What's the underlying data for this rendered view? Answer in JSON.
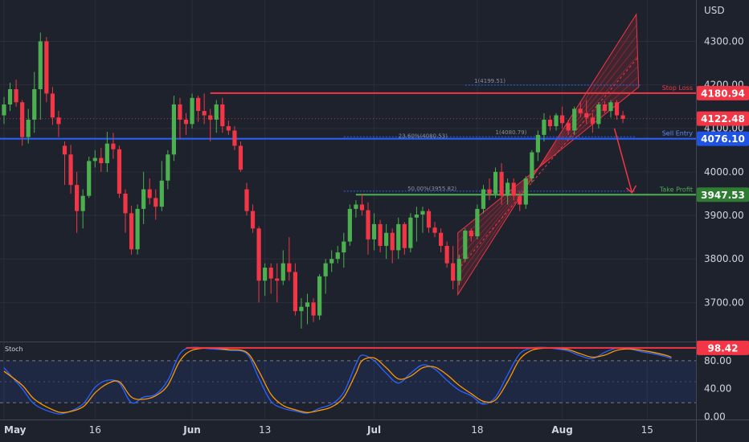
{
  "chart_data": {
    "type": "candlestick",
    "price_axis": {
      "unit": "USD",
      "ticks": [
        3700,
        3800,
        3900,
        4000,
        4100,
        4200,
        4300
      ],
      "tick_labels": [
        "3700.00",
        "3800.00",
        "3900.00",
        "4000.00",
        "4100.00",
        "4200.00",
        "4300.00"
      ],
      "range": [
        3612,
        4395
      ]
    },
    "time_axis": {
      "labels": [
        {
          "label": "May",
          "day": 0,
          "bold": true
        },
        {
          "label": "16",
          "day": 15,
          "bold": false
        },
        {
          "label": "Jun",
          "day": 31,
          "bold": true
        },
        {
          "label": "13",
          "day": 43,
          "bold": false
        },
        {
          "label": "Jul",
          "day": 61,
          "bold": true
        },
        {
          "label": "18",
          "day": 78,
          "bold": false
        },
        {
          "label": "Aug",
          "day": 92,
          "bold": true
        },
        {
          "label": "15",
          "day": 106,
          "bold": false
        }
      ]
    },
    "price_tags": [
      {
        "value": "4180.94",
        "color": "#f23645"
      },
      {
        "value": "4122.48",
        "color": "#f23645"
      },
      {
        "value": "4076.10",
        "color": "#1e53e5"
      },
      {
        "value": "3947.53",
        "color": "#2e7d32"
      }
    ],
    "levels": [
      {
        "label": "Stop Loss",
        "value": 4180.94,
        "color": "#f23645"
      },
      {
        "label": "Sell Entry",
        "value": 4076.1,
        "color": "#2962ff"
      },
      {
        "label": "Take Profit",
        "value": 3947.53,
        "color": "#4caf50"
      }
    ],
    "fib_labels": [
      {
        "label": "1(4199.51)",
        "value": 4199.51
      },
      {
        "label": "1(4080.79)",
        "value": 4080.79
      },
      {
        "label": "23.60%(4080.53)",
        "value": 4080.53
      },
      {
        "label": "50.00%(3955.82)",
        "value": 3955.82
      }
    ],
    "candles": [
      [
        0,
        4130,
        4172,
        4110,
        4155
      ],
      [
        1,
        4155,
        4205,
        4140,
        4190
      ],
      [
        2,
        4190,
        4212,
        4150,
        4160
      ],
      [
        3,
        4160,
        4165,
        4060,
        4080
      ],
      [
        4,
        4080,
        4145,
        4065,
        4120
      ],
      [
        5,
        4120,
        4230,
        4090,
        4190
      ],
      [
        6,
        4190,
        4320,
        4120,
        4300
      ],
      [
        7,
        4300,
        4310,
        4160,
        4180
      ],
      [
        8,
        4180,
        4195,
        4108,
        4125
      ],
      [
        9,
        4125,
        4140,
        4080,
        4110
      ],
      [
        10,
        4060,
        4070,
        3970,
        4040
      ],
      [
        11,
        4040,
        4062,
        3950,
        3970
      ],
      [
        12,
        3970,
        4000,
        3860,
        3910
      ],
      [
        13,
        3910,
        3960,
        3870,
        3945
      ],
      [
        14,
        3945,
        4035,
        3940,
        4025
      ],
      [
        15,
        4025,
        4050,
        4010,
        4032
      ],
      [
        16,
        4032,
        4055,
        4000,
        4020
      ],
      [
        17,
        4020,
        4092,
        4000,
        4065
      ],
      [
        18,
        4065,
        4090,
        4030,
        4052
      ],
      [
        19,
        4052,
        4060,
        3940,
        3950
      ],
      [
        20,
        3950,
        3960,
        3860,
        3905
      ],
      [
        21,
        3905,
        3922,
        3810,
        3822
      ],
      [
        22,
        3822,
        3925,
        3810,
        3915
      ],
      [
        23,
        3915,
        4000,
        3880,
        3960
      ],
      [
        24,
        3960,
        3985,
        3925,
        3940
      ],
      [
        25,
        3940,
        3960,
        3890,
        3920
      ],
      [
        26,
        3920,
        4025,
        3910,
        3980
      ],
      [
        27,
        3980,
        4050,
        3960,
        4040
      ],
      [
        28,
        4040,
        4175,
        4025,
        4155
      ],
      [
        29,
        4155,
        4170,
        4075,
        4120
      ],
      [
        30,
        4120,
        4135,
        4085,
        4110
      ],
      [
        31,
        4110,
        4180,
        4100,
        4170
      ],
      [
        32,
        4170,
        4175,
        4115,
        4140
      ],
      [
        33,
        4140,
        4180,
        4110,
        4130
      ],
      [
        34,
        4130,
        4145,
        4070,
        4120
      ],
      [
        35,
        4120,
        4165,
        4090,
        4155
      ],
      [
        36,
        4155,
        4170,
        4090,
        4105
      ],
      [
        37,
        4105,
        4118,
        4085,
        4095
      ],
      [
        38,
        4095,
        4105,
        4050,
        4060
      ],
      [
        39,
        4060,
        4070,
        4000,
        4005
      ],
      [
        40,
        3960,
        3975,
        3900,
        3910
      ],
      [
        41,
        3910,
        3925,
        3860,
        3870
      ],
      [
        42,
        3870,
        3875,
        3700,
        3750
      ],
      [
        43,
        3750,
        3790,
        3715,
        3780
      ],
      [
        44,
        3780,
        3790,
        3720,
        3755
      ],
      [
        45,
        3755,
        3790,
        3700,
        3750
      ],
      [
        46,
        3750,
        3820,
        3740,
        3790
      ],
      [
        47,
        3790,
        3850,
        3750,
        3770
      ],
      [
        48,
        3770,
        3790,
        3670,
        3680
      ],
      [
        49,
        3680,
        3710,
        3640,
        3690
      ],
      [
        50,
        3690,
        3720,
        3650,
        3700
      ],
      [
        51,
        3700,
        3710,
        3655,
        3670
      ],
      [
        52,
        3670,
        3765,
        3660,
        3760
      ],
      [
        53,
        3760,
        3800,
        3720,
        3790
      ],
      [
        54,
        3790,
        3820,
        3770,
        3800
      ],
      [
        55,
        3800,
        3830,
        3790,
        3815
      ],
      [
        56,
        3815,
        3860,
        3780,
        3840
      ],
      [
        57,
        3840,
        3925,
        3830,
        3915
      ],
      [
        58,
        3915,
        3935,
        3895,
        3925
      ],
      [
        59,
        3925,
        3950,
        3900,
        3912
      ],
      [
        60,
        3912,
        3930,
        3810,
        3845
      ],
      [
        61,
        3845,
        3905,
        3820,
        3880
      ],
      [
        62,
        3880,
        3890,
        3815,
        3830
      ],
      [
        63,
        3830,
        3880,
        3800,
        3860
      ],
      [
        64,
        3860,
        3870,
        3790,
        3820
      ],
      [
        65,
        3820,
        3895,
        3800,
        3880
      ],
      [
        66,
        3880,
        3885,
        3810,
        3825
      ],
      [
        67,
        3825,
        3905,
        3815,
        3895
      ],
      [
        68,
        3895,
        3920,
        3840,
        3902
      ],
      [
        69,
        3902,
        3920,
        3860,
        3910
      ],
      [
        70,
        3910,
        3915,
        3860,
        3872
      ],
      [
        71,
        3872,
        3885,
        3850,
        3860
      ],
      [
        72,
        3860,
        3870,
        3815,
        3830
      ],
      [
        73,
        3830,
        3840,
        3780,
        3790
      ],
      [
        74,
        3790,
        3830,
        3730,
        3750
      ],
      [
        75,
        3750,
        3810,
        3740,
        3800
      ],
      [
        76,
        3800,
        3870,
        3795,
        3865
      ],
      [
        77,
        3865,
        3870,
        3840,
        3852
      ],
      [
        78,
        3852,
        3925,
        3845,
        3915
      ],
      [
        79,
        3915,
        3970,
        3905,
        3960
      ],
      [
        80,
        3960,
        3985,
        3935,
        3950
      ],
      [
        81,
        3950,
        4010,
        3940,
        4000
      ],
      [
        82,
        4000,
        4020,
        3925,
        3945
      ],
      [
        83,
        3945,
        3985,
        3925,
        3975
      ],
      [
        84,
        3975,
        3985,
        3935,
        3945
      ],
      [
        85,
        3945,
        3955,
        3910,
        3925
      ],
      [
        86,
        3925,
        3990,
        3915,
        3985
      ],
      [
        87,
        3985,
        4050,
        3975,
        4045
      ],
      [
        88,
        4045,
        4095,
        4025,
        4085
      ],
      [
        89,
        4085,
        4135,
        4070,
        4120
      ],
      [
        90,
        4120,
        4130,
        4095,
        4105
      ],
      [
        91,
        4105,
        4135,
        4095,
        4130
      ],
      [
        92,
        4130,
        4150,
        4100,
        4112
      ],
      [
        93,
        4112,
        4120,
        4085,
        4095
      ],
      [
        94,
        4095,
        4150,
        4085,
        4145
      ],
      [
        95,
        4145,
        4160,
        4125,
        4135
      ],
      [
        96,
        4135,
        4165,
        4110,
        4125
      ],
      [
        97,
        4125,
        4135,
        4090,
        4110
      ],
      [
        98,
        4110,
        4160,
        4100,
        4155
      ],
      [
        99,
        4155,
        4162,
        4135,
        4140
      ],
      [
        100,
        4140,
        4165,
        4125,
        4160
      ],
      [
        101,
        4160,
        4165,
        4120,
        4130
      ],
      [
        102,
        4130,
        4140,
        4112,
        4122
      ]
    ],
    "stochastic": {
      "title": "Stoch",
      "ticks": [
        0,
        40,
        80
      ],
      "tick_labels": [
        "0.00",
        "40.00",
        "80.00"
      ],
      "current_value": "98.42",
      "band": [
        20,
        80
      ],
      "range": [
        -4,
        104
      ],
      "k": [
        [
          0,
          70
        ],
        [
          3,
          40
        ],
        [
          5,
          18
        ],
        [
          8,
          6
        ],
        [
          10,
          5
        ],
        [
          13,
          18
        ],
        [
          15,
          42
        ],
        [
          17,
          52
        ],
        [
          19,
          48
        ],
        [
          21,
          20
        ],
        [
          23,
          28
        ],
        [
          25,
          32
        ],
        [
          27,
          52
        ],
        [
          29,
          90
        ],
        [
          31,
          99
        ],
        [
          34,
          97
        ],
        [
          37,
          95
        ],
        [
          40,
          90
        ],
        [
          42,
          55
        ],
        [
          44,
          22
        ],
        [
          46,
          12
        ],
        [
          48,
          8
        ],
        [
          50,
          5
        ],
        [
          52,
          12
        ],
        [
          54,
          18
        ],
        [
          56,
          35
        ],
        [
          58,
          75
        ],
        [
          59,
          88
        ],
        [
          61,
          80
        ],
        [
          63,
          62
        ],
        [
          65,
          48
        ],
        [
          67,
          62
        ],
        [
          69,
          74
        ],
        [
          71,
          68
        ],
        [
          73,
          52
        ],
        [
          75,
          38
        ],
        [
          77,
          30
        ],
        [
          79,
          18
        ],
        [
          81,
          28
        ],
        [
          83,
          60
        ],
        [
          85,
          90
        ],
        [
          87,
          98
        ],
        [
          89,
          99
        ],
        [
          91,
          97
        ],
        [
          93,
          94
        ],
        [
          95,
          87
        ],
        [
          97,
          83
        ],
        [
          99,
          92
        ],
        [
          101,
          98
        ],
        [
          103,
          97
        ],
        [
          105,
          93
        ],
        [
          107,
          90
        ],
        [
          109,
          86
        ],
        [
          110,
          83
        ]
      ],
      "d": [
        [
          0,
          65
        ],
        [
          3,
          45
        ],
        [
          5,
          25
        ],
        [
          8,
          10
        ],
        [
          10,
          6
        ],
        [
          13,
          14
        ],
        [
          15,
          34
        ],
        [
          17,
          47
        ],
        [
          19,
          50
        ],
        [
          21,
          28
        ],
        [
          23,
          25
        ],
        [
          25,
          30
        ],
        [
          27,
          45
        ],
        [
          29,
          80
        ],
        [
          31,
          95
        ],
        [
          34,
          98
        ],
        [
          37,
          96
        ],
        [
          40,
          92
        ],
        [
          42,
          65
        ],
        [
          44,
          32
        ],
        [
          46,
          16
        ],
        [
          48,
          10
        ],
        [
          50,
          6
        ],
        [
          52,
          9
        ],
        [
          54,
          14
        ],
        [
          56,
          28
        ],
        [
          58,
          62
        ],
        [
          59,
          80
        ],
        [
          61,
          84
        ],
        [
          63,
          70
        ],
        [
          65,
          54
        ],
        [
          67,
          58
        ],
        [
          69,
          70
        ],
        [
          71,
          71
        ],
        [
          73,
          60
        ],
        [
          75,
          45
        ],
        [
          77,
          33
        ],
        [
          79,
          22
        ],
        [
          81,
          24
        ],
        [
          83,
          50
        ],
        [
          85,
          82
        ],
        [
          87,
          95
        ],
        [
          89,
          98
        ],
        [
          91,
          98
        ],
        [
          93,
          96
        ],
        [
          95,
          90
        ],
        [
          97,
          85
        ],
        [
          99,
          88
        ],
        [
          101,
          95
        ],
        [
          103,
          97
        ],
        [
          105,
          95
        ],
        [
          107,
          92
        ],
        [
          109,
          88
        ],
        [
          110,
          85
        ]
      ]
    },
    "colors": {
      "up": "#4caf50",
      "down": "#f23645",
      "background": "#1e222d",
      "grid": "#2a2e39",
      "channel": "#f23645",
      "k_line": "#2962ff",
      "d_line": "#ff9800"
    }
  }
}
